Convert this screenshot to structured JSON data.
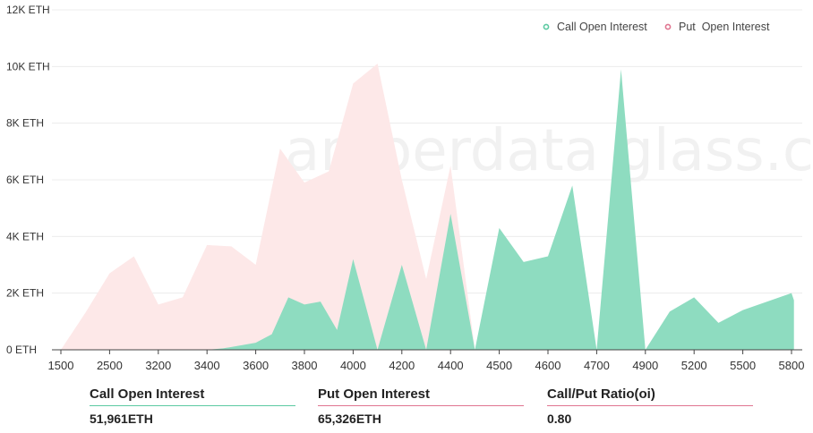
{
  "chart_data": {
    "type": "area",
    "categories": [
      "1500",
      "2500",
      "3200",
      "3400",
      "3600",
      "3800",
      "4000",
      "4200",
      "4400",
      "4500",
      "4600",
      "4700",
      "4900",
      "5200",
      "5500",
      "5800"
    ],
    "y_ticks": [
      "0 ETH",
      "2K ETH",
      "4K ETH",
      "6K ETH",
      "8K ETH",
      "10K ETH",
      "12K ETH"
    ],
    "ylim": [
      0,
      12000
    ],
    "watermark": "amberdata glass.com",
    "legend_position": "top-right",
    "grid": true,
    "series": [
      {
        "name": "Call Open Interest",
        "color": "#8edcc0",
        "marker_color": "#5cc9a2",
        "points": [
          [
            0,
            0
          ],
          [
            0.33,
            0
          ],
          [
            0.67,
            0
          ],
          [
            1,
            0
          ],
          [
            1.33,
            0
          ],
          [
            1.67,
            0
          ],
          [
            2,
            0
          ],
          [
            2.33,
            0
          ],
          [
            2.67,
            0
          ],
          [
            3,
            0
          ],
          [
            3.33,
            50
          ],
          [
            3.67,
            150
          ],
          [
            4,
            250
          ],
          [
            4.33,
            550
          ],
          [
            4.67,
            1850
          ],
          [
            5,
            1600
          ],
          [
            5.33,
            1700
          ],
          [
            5.67,
            700
          ],
          [
            6,
            3200
          ],
          [
            6.5,
            0
          ],
          [
            7,
            3000
          ],
          [
            7.5,
            0
          ],
          [
            8,
            4800
          ],
          [
            8.5,
            0
          ],
          [
            9,
            4300
          ],
          [
            9.5,
            3100
          ],
          [
            10,
            3300
          ],
          [
            10.5,
            5800
          ],
          [
            11,
            0
          ],
          [
            11.5,
            9900
          ],
          [
            12,
            0
          ],
          [
            12.5,
            1350
          ],
          [
            13,
            1850
          ],
          [
            13.5,
            950
          ],
          [
            14,
            1400
          ],
          [
            15,
            2000
          ],
          [
            15.05,
            1750
          ]
        ]
      },
      {
        "name": "Put Open Interest",
        "color": "#fde8e8",
        "marker_color": "#e07590",
        "points": [
          [
            0,
            0
          ],
          [
            0.5,
            1300
          ],
          [
            1,
            2700
          ],
          [
            1.5,
            3300
          ],
          [
            2,
            1600
          ],
          [
            2.5,
            1850
          ],
          [
            3,
            3700
          ],
          [
            3.5,
            3650
          ],
          [
            4,
            3000
          ],
          [
            4.5,
            7100
          ],
          [
            5,
            5900
          ],
          [
            5.5,
            6300
          ],
          [
            6,
            9400
          ],
          [
            6.5,
            10100
          ],
          [
            7,
            6000
          ],
          [
            7.5,
            2500
          ],
          [
            8,
            6500
          ],
          [
            8.5,
            0
          ]
        ]
      }
    ]
  },
  "legend": {
    "call_label": "Call Open Interest",
    "put_label": "Put  Open Interest"
  },
  "stats": [
    {
      "label": "Call Open Interest",
      "value": "51,961ETH",
      "color": "#5cc9a2"
    },
    {
      "label": "Put Open Interest",
      "value": "65,326ETH",
      "color": "#e07590"
    },
    {
      "label": "Call/Put Ratio(oi)",
      "value": "0.80",
      "color": "#e07590"
    }
  ]
}
